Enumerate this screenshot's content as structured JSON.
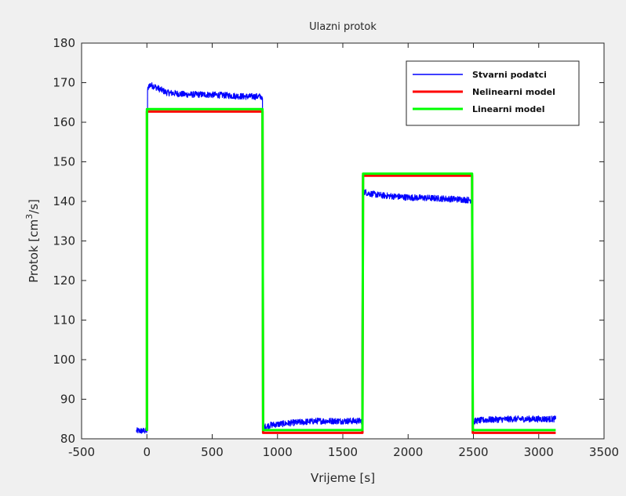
{
  "chart_data": {
    "type": "line",
    "title": "Ulazni protok",
    "xlabel": "Vrijeme [s]",
    "ylabel": {
      "main": "Protok   [cm",
      "sup": "3",
      "tail": "/s]"
    },
    "xlim": [
      -500,
      3500
    ],
    "ylim": [
      80,
      180
    ],
    "xticks": [
      -500,
      0,
      500,
      1000,
      1500,
      2000,
      2500,
      3000,
      3500
    ],
    "yticks": [
      80,
      90,
      100,
      110,
      120,
      130,
      140,
      150,
      160,
      170,
      180
    ],
    "grid": false,
    "legend_position": "top-right",
    "series": [
      {
        "name": "Stvarni podatci",
        "color": "#0000ff",
        "noisy": true,
        "x": [
          -80,
          -10,
          0,
          5,
          20,
          60,
          150,
          300,
          450,
          600,
          750,
          880,
          885,
          890,
          900,
          950,
          1100,
          1300,
          1500,
          1645,
          1650,
          1660,
          1700,
          1800,
          2000,
          2200,
          2400,
          2485,
          2490,
          2495,
          2510,
          2600,
          2800,
          3000,
          3130
        ],
        "y": [
          82,
          82,
          82,
          168,
          169.5,
          169,
          167.5,
          167,
          167,
          166.8,
          166.5,
          166.5,
          166,
          82,
          83,
          83.5,
          84,
          84.5,
          84.5,
          84.5,
          140,
          142.5,
          142,
          141.5,
          141,
          140.8,
          140.5,
          140.3,
          140,
          83.5,
          84.5,
          84.8,
          85,
          85,
          85
        ]
      },
      {
        "name": "Nelinearni model",
        "color": "#ff0000",
        "noisy": false,
        "x": [
          0,
          0,
          885,
          890,
          1650,
          1655,
          2490,
          2495,
          3130
        ],
        "y": [
          82,
          162.7,
          162.7,
          81.5,
          81.5,
          146.5,
          146.5,
          81.5,
          81.5
        ]
      },
      {
        "name": "Linearni model",
        "color": "#00ff00",
        "noisy": false,
        "x": [
          0,
          0,
          885,
          890,
          1650,
          1655,
          2490,
          2495,
          3130
        ],
        "y": [
          82,
          163.3,
          163.3,
          82.2,
          82.2,
          147,
          147,
          82.2,
          82.2
        ]
      }
    ]
  }
}
